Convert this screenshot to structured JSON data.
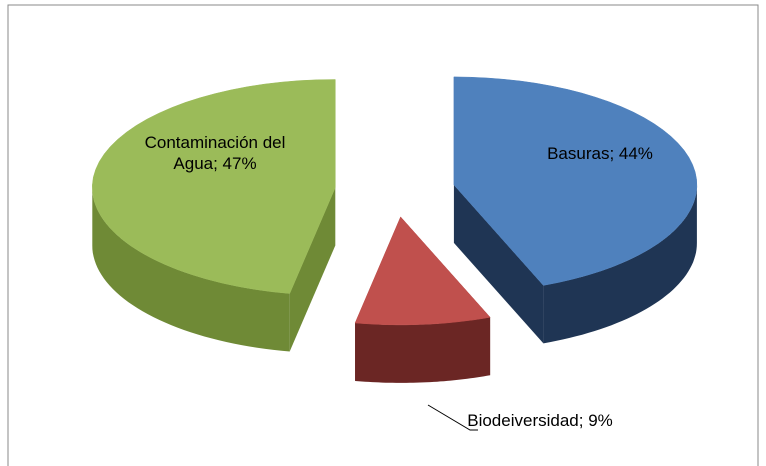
{
  "chart_data": {
    "type": "pie3d",
    "values": [
      44,
      9,
      47
    ],
    "value_labels": [
      "Basuras; 44%",
      "Biodeiversidad; 9%",
      "Contaminación del Agua; 47%"
    ],
    "colors": [
      "#4f81bd",
      "#c0504d",
      "#9bbb59"
    ],
    "side_colors": [
      "#1f3554",
      "#6b2624",
      "#6f8a36"
    ]
  }
}
